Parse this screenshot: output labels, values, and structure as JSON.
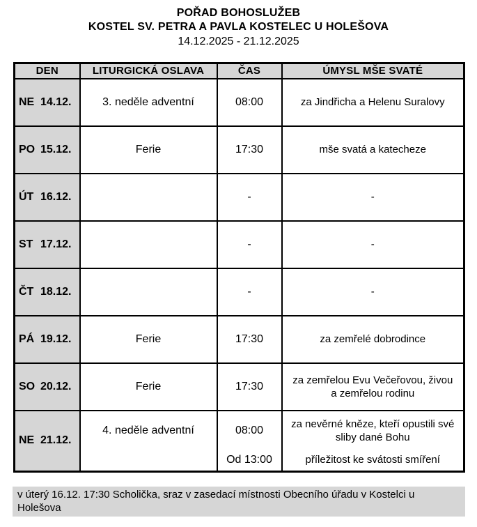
{
  "header": {
    "title": "POŘAD BOHOSLUŽEB",
    "subtitle": "KOSTEL SV. PETRA A PAVLA KOSTELEC U HOLEŠOVA",
    "date_range": "14.12.2025 - 21.12.2025"
  },
  "table": {
    "columns": [
      "DEN",
      "LITURGICKÁ OSLAVA",
      "ČAS",
      "ÚMYSL MŠE SVATÉ"
    ],
    "rows": [
      {
        "day": "NE",
        "date": "14.12.",
        "celebration": "3. neděle adventní",
        "time": "08:00",
        "intention_lines": [
          "za Jindřicha a Helenu Suralovy"
        ]
      },
      {
        "day": "PO",
        "date": "15.12.",
        "celebration": "Ferie",
        "time": "17:30",
        "intention_lines": [
          "mše svatá a katecheze"
        ]
      },
      {
        "day": "ÚT",
        "date": "16.12.",
        "celebration": "",
        "time": "-",
        "intention_lines": [
          "-"
        ]
      },
      {
        "day": "ST",
        "date": "17.12.",
        "celebration": "",
        "time": "-",
        "intention_lines": [
          "-"
        ]
      },
      {
        "day": "ČT",
        "date": "18.12.",
        "celebration": "",
        "time": "-",
        "intention_lines": [
          "-"
        ]
      },
      {
        "day": "PÁ",
        "date": "19.12.",
        "celebration": "Ferie",
        "time": "17:30",
        "intention_lines": [
          "za zemřelé dobrodince"
        ]
      },
      {
        "day": "SO",
        "date": "20.12.",
        "celebration": "Ferie",
        "time": "17:30",
        "intention_lines": [
          "za zemřelou Evu Večeřovou, živou",
          "a zemřelou rodinu"
        ]
      },
      {
        "day": "NE",
        "date": "21.12.",
        "celebration": "4. neděle adventní",
        "time": "08:00",
        "intention_lines": [
          "za nevěrné kněze, kteří opustili své",
          "sliby dané Bohu"
        ],
        "time2": "Od 13:00",
        "intention2": "příležitost ke svátosti smíření"
      }
    ]
  },
  "footer": {
    "note": "v úterý 16.12. 17:30 Scholička, sraz v zasedací místnosti Obecního úřadu v Kostelci u Holešova"
  },
  "colors": {
    "cell_gray": "#d6d6d6",
    "border": "#000000",
    "text": "#000000",
    "background": "#ffffff"
  }
}
